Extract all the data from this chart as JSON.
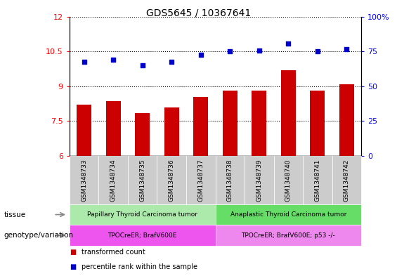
{
  "title": "GDS5645 / 10367641",
  "samples": [
    "GSM1348733",
    "GSM1348734",
    "GSM1348735",
    "GSM1348736",
    "GSM1348737",
    "GSM1348738",
    "GSM1348739",
    "GSM1348740",
    "GSM1348741",
    "GSM1348742"
  ],
  "bar_values": [
    8.2,
    8.35,
    7.85,
    8.1,
    8.55,
    8.8,
    8.8,
    9.7,
    8.8,
    9.1
  ],
  "dot_values": [
    10.05,
    10.15,
    9.9,
    10.05,
    10.35,
    10.5,
    10.55,
    10.85,
    10.5,
    10.6
  ],
  "bar_color": "#cc0000",
  "dot_color": "#0000cc",
  "ylim_left": [
    6,
    12
  ],
  "ylim_right": [
    0,
    100
  ],
  "yticks_left": [
    6,
    7.5,
    9,
    10.5,
    12
  ],
  "yticks_right": [
    0,
    25,
    50,
    75,
    100
  ],
  "tissue_groups": [
    {
      "label": "Papillary Thyroid Carcinoma tumor",
      "start": 0,
      "end": 5,
      "color": "#abeaab"
    },
    {
      "label": "Anaplastic Thyroid Carcinoma tumor",
      "start": 5,
      "end": 10,
      "color": "#66dd66"
    }
  ],
  "genotype_groups": [
    {
      "label": "TPOCreER; BrafV600E",
      "start": 0,
      "end": 5,
      "color": "#ee55ee"
    },
    {
      "label": "TPOCreER; BrafV600E; p53 -/-",
      "start": 5,
      "end": 10,
      "color": "#ee88ee"
    }
  ],
  "tissue_label": "tissue",
  "genotype_label": "genotype/variation",
  "legend_bar_label": "transformed count",
  "legend_dot_label": "percentile rank within the sample",
  "chart_bg": "#ffffff",
  "tick_bg": "#cccccc",
  "title_fontsize": 10
}
